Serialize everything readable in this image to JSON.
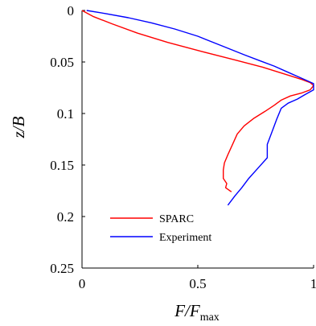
{
  "chart_data": {
    "type": "line",
    "xlabel": "F/F_max",
    "xlabel_main": "F/F",
    "xlabel_sub": "max",
    "ylabel": "z/B",
    "xlim": [
      0,
      1
    ],
    "ylim": [
      0,
      0.25
    ],
    "y_inverted": true,
    "x_ticks": [
      0,
      0.5,
      1
    ],
    "x_tick_labels": [
      "0",
      "0.5",
      "1"
    ],
    "y_ticks": [
      0,
      0.05,
      0.1,
      0.15,
      0.2,
      0.25
    ],
    "y_tick_labels": [
      "0",
      "0.05",
      "0.1",
      "0.15",
      "0.2",
      "0.25"
    ],
    "grid": false,
    "legend_position": "bottom-left",
    "series": [
      {
        "name": "SPARC",
        "color": "#ff0000",
        "points": [
          [
            0.0,
            0.0
          ],
          [
            0.05,
            0.006
          ],
          [
            0.13,
            0.013
          ],
          [
            0.24,
            0.022
          ],
          [
            0.37,
            0.031
          ],
          [
            0.52,
            0.04
          ],
          [
            0.66,
            0.048
          ],
          [
            0.78,
            0.055
          ],
          [
            0.88,
            0.062
          ],
          [
            0.95,
            0.067
          ],
          [
            0.985,
            0.07
          ],
          [
            1.0,
            0.073
          ],
          [
            0.985,
            0.077
          ],
          [
            0.95,
            0.08
          ],
          [
            0.9,
            0.083
          ],
          [
            0.86,
            0.087
          ],
          [
            0.83,
            0.092
          ],
          [
            0.79,
            0.098
          ],
          [
            0.74,
            0.105
          ],
          [
            0.7,
            0.112
          ],
          [
            0.67,
            0.12
          ],
          [
            0.65,
            0.13
          ],
          [
            0.63,
            0.14
          ],
          [
            0.615,
            0.148
          ],
          [
            0.61,
            0.155
          ],
          [
            0.61,
            0.163
          ],
          [
            0.625,
            0.168
          ],
          [
            0.62,
            0.172
          ],
          [
            0.645,
            0.176
          ]
        ]
      },
      {
        "name": "Experiment",
        "color": "#0000ff",
        "points": [
          [
            0.02,
            0.0
          ],
          [
            0.1,
            0.003
          ],
          [
            0.2,
            0.007
          ],
          [
            0.3,
            0.012
          ],
          [
            0.4,
            0.018
          ],
          [
            0.5,
            0.025
          ],
          [
            0.6,
            0.034
          ],
          [
            0.7,
            0.043
          ],
          [
            0.77,
            0.049
          ],
          [
            0.83,
            0.054
          ],
          [
            0.89,
            0.06
          ],
          [
            0.93,
            0.064
          ],
          [
            0.97,
            0.068
          ],
          [
            1.0,
            0.071
          ],
          [
            1.0,
            0.077
          ],
          [
            0.96,
            0.082
          ],
          [
            0.93,
            0.086
          ],
          [
            0.89,
            0.09
          ],
          [
            0.86,
            0.095
          ],
          [
            0.84,
            0.106
          ],
          [
            0.82,
            0.118
          ],
          [
            0.8,
            0.13
          ],
          [
            0.8,
            0.143
          ],
          [
            0.76,
            0.153
          ],
          [
            0.72,
            0.163
          ],
          [
            0.69,
            0.172
          ],
          [
            0.66,
            0.18
          ],
          [
            0.63,
            0.189
          ]
        ]
      }
    ]
  }
}
